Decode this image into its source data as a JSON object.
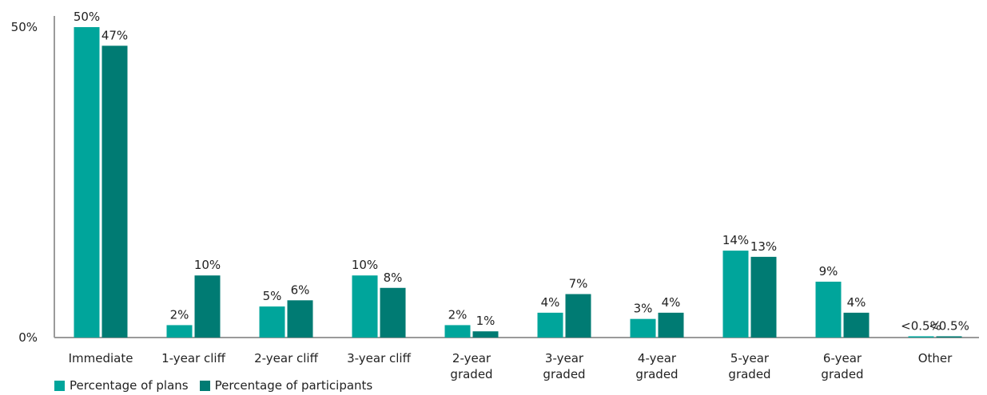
{
  "chart_data": {
    "type": "bar",
    "categories": [
      [
        "Immediate"
      ],
      [
        "1-year cliff"
      ],
      [
        "2-year cliff"
      ],
      [
        "3-year cliff"
      ],
      [
        "2-year",
        "graded"
      ],
      [
        "3-year",
        "graded"
      ],
      [
        "4-year",
        "graded"
      ],
      [
        "5-year",
        "graded"
      ],
      [
        "6-year",
        "graded"
      ],
      [
        "Other"
      ]
    ],
    "series": [
      {
        "name": "Percentage of plans",
        "color": "#00a59b",
        "values": [
          50,
          2,
          5,
          10,
          2,
          4,
          3,
          14,
          9,
          0.2
        ],
        "labels": [
          "50%",
          "2%",
          "5%",
          "10%",
          "2%",
          "4%",
          "3%",
          "14%",
          "9%",
          "<0.5%"
        ]
      },
      {
        "name": "Percentage of participants",
        "color": "#007b73",
        "values": [
          47,
          10,
          6,
          8,
          1,
          7,
          4,
          13,
          4,
          0.2
        ],
        "labels": [
          "47%",
          "10%",
          "6%",
          "8%",
          "1%",
          "7%",
          "4%",
          "13%",
          "4%",
          "<0.5%"
        ]
      }
    ],
    "y_ticks": [
      {
        "value": 0,
        "label": "0%"
      },
      {
        "value": 50,
        "label": "50%"
      }
    ],
    "ylim": [
      0,
      50
    ],
    "grid": false,
    "legend_position": "bottom-left",
    "title": "",
    "xlabel": "",
    "ylabel": ""
  }
}
